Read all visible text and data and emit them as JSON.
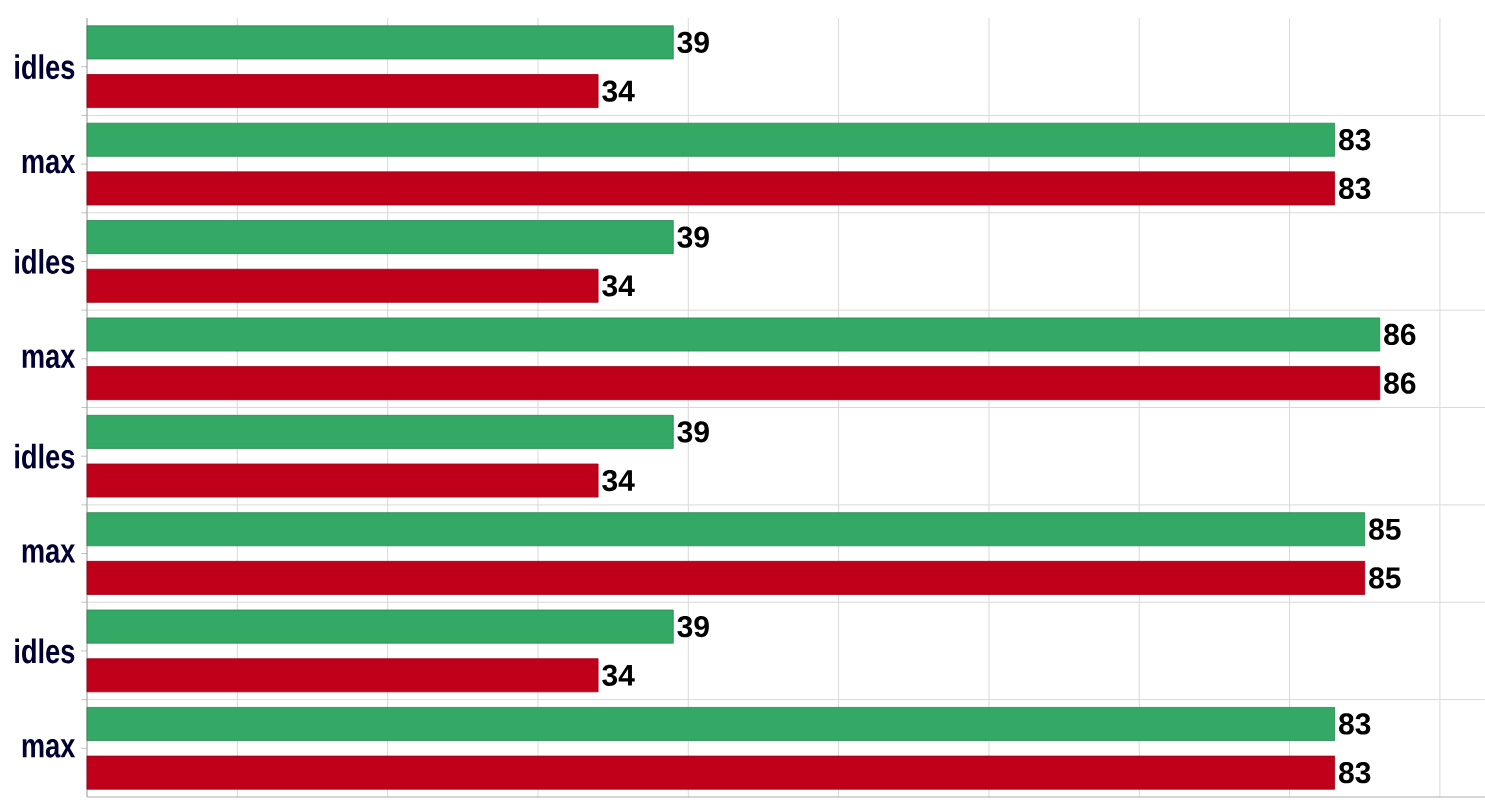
{
  "chart_data": {
    "type": "bar",
    "orientation": "horizontal",
    "categories": [
      "idles",
      "max",
      "idles",
      "max",
      "idles",
      "max",
      "idles",
      "max"
    ],
    "series": [
      {
        "color": "#34a865",
        "values": [
          39,
          83,
          39,
          86,
          39,
          85,
          39,
          83
        ]
      },
      {
        "color": "#c0001a",
        "values": [
          34,
          83,
          34,
          86,
          34,
          85,
          34,
          83
        ]
      }
    ],
    "xlim": [
      0,
      93
    ],
    "xticks": [
      {
        "value": 0,
        "label": null
      },
      {
        "value": 10,
        "label": null
      },
      {
        "value": 20,
        "label": null
      },
      {
        "value": 30,
        "label": null
      },
      {
        "value": 40,
        "label": null
      },
      {
        "value": 50,
        "label": null
      },
      {
        "value": 60,
        "label": null
      },
      {
        "value": 70,
        "label": null
      },
      {
        "value": 80,
        "label": null
      },
      {
        "value": 90,
        "label": null
      }
    ],
    "tick_labels": "y",
    "grid": true,
    "data_labels": true
  }
}
